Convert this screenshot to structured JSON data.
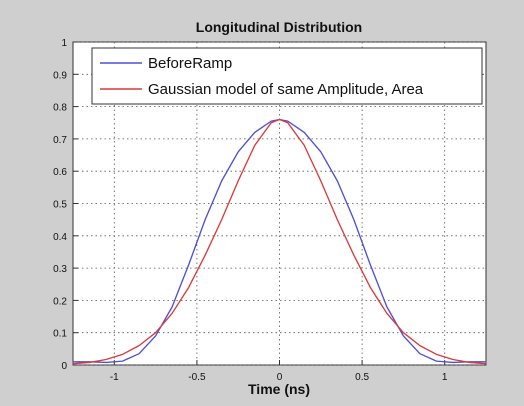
{
  "chart_data": {
    "type": "line",
    "title": "Longitudinal Distribution",
    "xlabel": "Time (ns)",
    "ylabel": "",
    "xlim": [
      -1.25,
      1.25
    ],
    "ylim": [
      0,
      1
    ],
    "x_ticks": [
      -1,
      -0.5,
      0,
      0.5,
      1
    ],
    "x_tick_labels": [
      "-1",
      "-0.5",
      "0",
      "0.5",
      "1"
    ],
    "y_ticks": [
      0,
      0.1,
      0.2,
      0.3,
      0.4,
      0.5,
      0.6,
      0.7,
      0.8,
      0.9,
      1
    ],
    "y_tick_labels": [
      "0",
      "0.1",
      "0.2",
      "0.3",
      "0.4",
      "0.5",
      "0.6",
      "0.7",
      "0.8",
      "0.9",
      "1"
    ],
    "grid": true,
    "legend_position": "top",
    "series": [
      {
        "name": "BeforeRamp",
        "color": "#4f4fd6",
        "x": [
          -1.25,
          -1.15,
          -1.05,
          -0.95,
          -0.85,
          -0.75,
          -0.65,
          -0.55,
          -0.45,
          -0.35,
          -0.25,
          -0.15,
          -0.05,
          0,
          0.05,
          0.15,
          0.25,
          0.35,
          0.45,
          0.55,
          0.65,
          0.75,
          0.85,
          0.95,
          1.05,
          1.15,
          1.25
        ],
        "y": [
          0.01,
          0.01,
          0.008,
          0.012,
          0.035,
          0.09,
          0.18,
          0.31,
          0.45,
          0.57,
          0.66,
          0.72,
          0.755,
          0.76,
          0.755,
          0.72,
          0.66,
          0.57,
          0.45,
          0.31,
          0.18,
          0.09,
          0.035,
          0.012,
          0.008,
          0.01,
          0.01
        ]
      },
      {
        "name": "Gaussian model of same Amplitude, Area",
        "color": "#d83b3b",
        "x": [
          -1.25,
          -1.15,
          -1.05,
          -0.95,
          -0.85,
          -0.75,
          -0.65,
          -0.55,
          -0.45,
          -0.35,
          -0.25,
          -0.15,
          -0.05,
          0,
          0.05,
          0.15,
          0.25,
          0.35,
          0.45,
          0.55,
          0.65,
          0.75,
          0.85,
          0.95,
          1.05,
          1.15,
          1.25
        ],
        "y": [
          0.004,
          0.008,
          0.017,
          0.033,
          0.06,
          0.1,
          0.16,
          0.24,
          0.34,
          0.45,
          0.57,
          0.68,
          0.75,
          0.76,
          0.75,
          0.68,
          0.57,
          0.45,
          0.34,
          0.24,
          0.16,
          0.1,
          0.06,
          0.033,
          0.017,
          0.008,
          0.004
        ]
      }
    ]
  }
}
